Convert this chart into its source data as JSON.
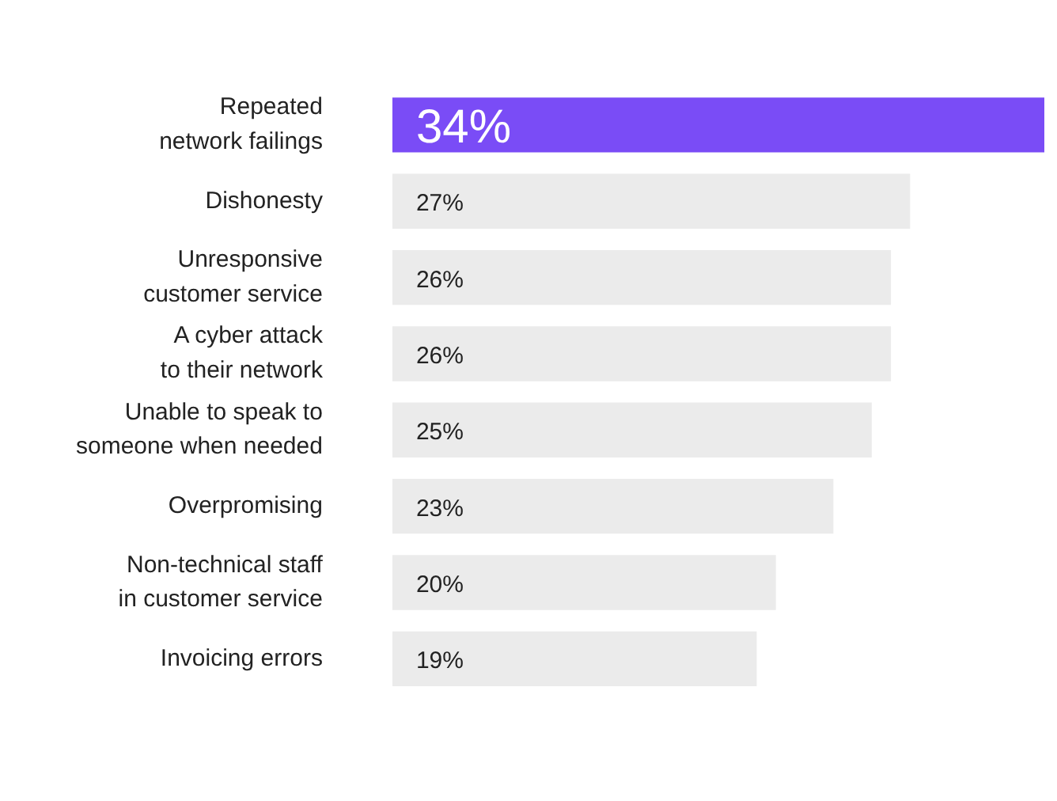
{
  "chart_data": {
    "type": "bar",
    "orientation": "horizontal",
    "categories": [
      "Repeated\nnetwork failings",
      "Dishonesty",
      "Unresponsive\ncustomer service",
      "A cyber attack\nto their network",
      "Unable to speak to\nsomeone when needed",
      "Overpromising",
      "Non-technical staff\nin customer service",
      "Invoicing errors"
    ],
    "values": [
      34,
      27,
      26,
      26,
      25,
      23,
      20,
      19
    ],
    "colors": [
      "#7a4cf6",
      "#ebebeb",
      "#ebebeb",
      "#ebebeb",
      "#ebebeb",
      "#ebebeb",
      "#ebebeb",
      "#ebebeb"
    ],
    "xlim": [
      0,
      34
    ],
    "value_labels": [
      "34%",
      "27%",
      "26%",
      "26%",
      "25%",
      "23%",
      "20%",
      "19%"
    ],
    "legend": false
  }
}
